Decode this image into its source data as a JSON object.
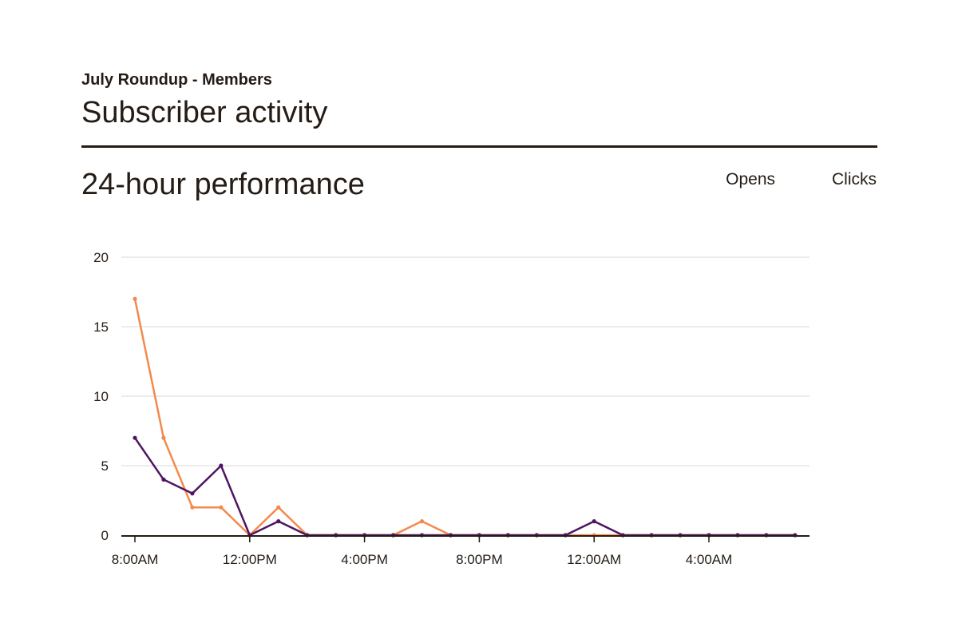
{
  "header": {
    "campaign_name": "July Roundup - Members",
    "page_title": "Subscriber activity"
  },
  "section": {
    "title": "24-hour performance"
  },
  "legend": {
    "opens_label": "Opens",
    "clicks_label": "Clicks"
  },
  "colors": {
    "opens": "#f4894c",
    "clicks": "#4f1563",
    "grid": "#d9d9d9",
    "axis": "#241c15",
    "text": "#241c15"
  },
  "chart_data": {
    "type": "line",
    "title": "24-hour performance",
    "xlabel": "",
    "ylabel": "",
    "x": [
      "8:00AM",
      "9:00AM",
      "10:00AM",
      "11:00AM",
      "12:00PM",
      "1:00PM",
      "2:00PM",
      "3:00PM",
      "4:00PM",
      "5:00PM",
      "6:00PM",
      "7:00PM",
      "8:00PM",
      "9:00PM",
      "10:00PM",
      "11:00PM",
      "12:00AM",
      "1:00AM",
      "2:00AM",
      "3:00AM",
      "4:00AM",
      "5:00AM",
      "6:00AM",
      "7:00AM"
    ],
    "x_tick_labels": [
      "8:00AM",
      "12:00PM",
      "4:00PM",
      "8:00PM",
      "12:00AM",
      "4:00AM"
    ],
    "x_tick_indices": [
      0,
      4,
      8,
      12,
      16,
      20
    ],
    "y_ticks": [
      0,
      5,
      10,
      15,
      20
    ],
    "ylim": [
      0,
      20
    ],
    "grid": true,
    "legend_position": "top-right",
    "series": [
      {
        "name": "Opens",
        "values": [
          17,
          7,
          2,
          2,
          0,
          2,
          0,
          0,
          0,
          0,
          1,
          0,
          0,
          0,
          0,
          0,
          0,
          0,
          0,
          0,
          0,
          0,
          0,
          0
        ]
      },
      {
        "name": "Clicks",
        "values": [
          7,
          4,
          3,
          5,
          0,
          1,
          0,
          0,
          0,
          0,
          0,
          0,
          0,
          0,
          0,
          0,
          1,
          0,
          0,
          0,
          0,
          0,
          0,
          0
        ]
      }
    ]
  }
}
